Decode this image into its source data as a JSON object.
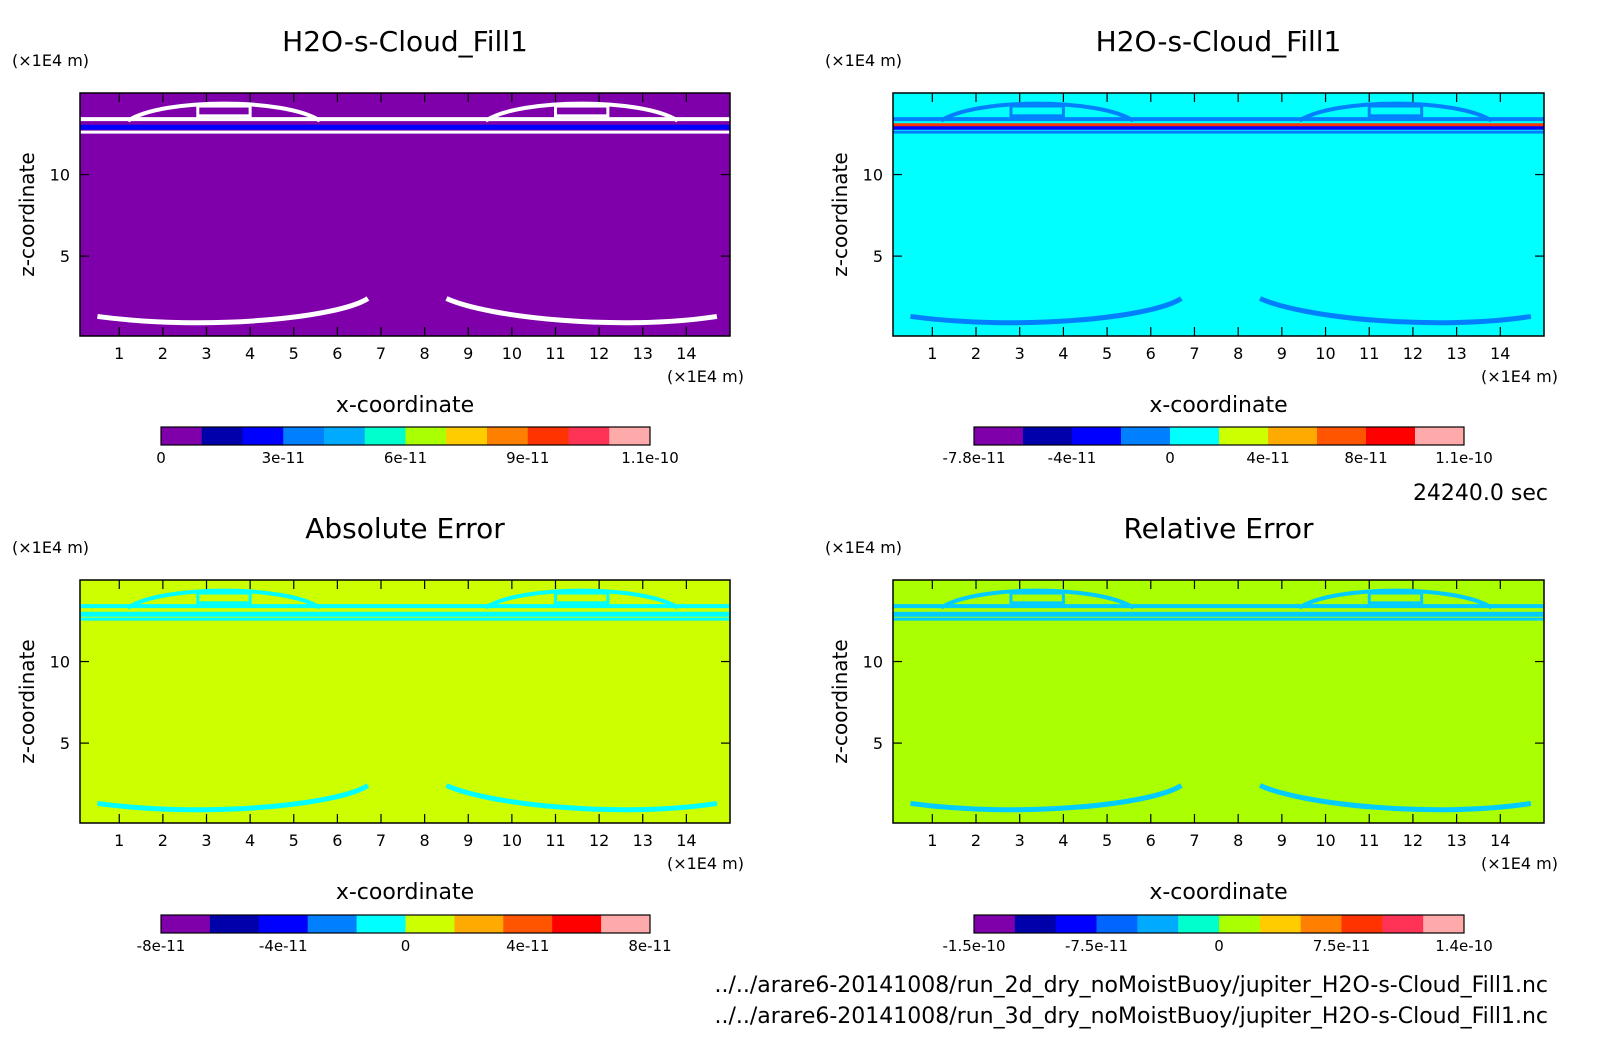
{
  "footer": {
    "time": "24240.0 sec",
    "paths": [
      "../../arare6-20141008/run_2d_dry_noMoistBuoy/jupiter_H2O-s-Cloud_Fill1.nc",
      "../../arare6-20141008/run_3d_dry_noMoistBuoy/jupiter_H2O-s-Cloud_Fill1.nc"
    ]
  },
  "chart_data": [
    {
      "type": "heatmap",
      "title": "H2O-s-Cloud_Fill1",
      "xlabel": "x-coordinate",
      "ylabel": "z-coordinate",
      "x_unit": "(x1E4 m)",
      "y_unit": "(x1E4 m)",
      "xlim": [
        0.1,
        15
      ],
      "ylim": [
        0.1,
        15
      ],
      "x_ticks": [
        "1",
        "2",
        "3",
        "4",
        "5",
        "6",
        "7",
        "8",
        "9",
        "10",
        "11",
        "12",
        "13",
        "14"
      ],
      "y_ticks": [
        "5",
        "10"
      ],
      "background_color": "#7f00aa",
      "contour_color": "#ffffff",
      "colorbar": {
        "colors": [
          "#7f00aa",
          "#0000aa",
          "#0000ff",
          "#0080ff",
          "#00aaff",
          "#00ffcc",
          "#aaff00",
          "#ffcc00",
          "#ff8000",
          "#ff3300",
          "#ff3355",
          "#ffaaaa"
        ],
        "labels": [
          "0",
          "3e-11",
          "6e-11",
          "9e-11",
          "1.1e-10"
        ]
      }
    },
    {
      "type": "heatmap",
      "title": "H2O-s-Cloud_Fill1",
      "xlabel": "x-coordinate",
      "ylabel": "z-coordinate",
      "x_unit": "(x1E4 m)",
      "y_unit": "(x1E4 m)",
      "xlim": [
        0.1,
        15
      ],
      "ylim": [
        0.1,
        15
      ],
      "x_ticks": [
        "1",
        "2",
        "3",
        "4",
        "5",
        "6",
        "7",
        "8",
        "9",
        "10",
        "11",
        "12",
        "13",
        "14"
      ],
      "y_ticks": [
        "5",
        "10"
      ],
      "background_color": "#00ffff",
      "contour_color": "#0080ff",
      "colorbar": {
        "colors": [
          "#7f00aa",
          "#0000aa",
          "#0000ff",
          "#0080ff",
          "#00ffff",
          "#ccff00",
          "#ffaa00",
          "#ff5500",
          "#ff0000",
          "#ffaaaa"
        ],
        "labels": [
          "-7.8e-11",
          "-4e-11",
          "0",
          "4e-11",
          "8e-11",
          "1.1e-10"
        ]
      }
    },
    {
      "type": "heatmap",
      "title": "Absolute Error",
      "xlabel": "x-coordinate",
      "ylabel": "z-coordinate",
      "x_unit": "(x1E4 m)",
      "y_unit": "(x1E4 m)",
      "xlim": [
        0.1,
        15
      ],
      "ylim": [
        0.1,
        15
      ],
      "x_ticks": [
        "1",
        "2",
        "3",
        "4",
        "5",
        "6",
        "7",
        "8",
        "9",
        "10",
        "11",
        "12",
        "13",
        "14"
      ],
      "y_ticks": [
        "5",
        "10"
      ],
      "background_color": "#ccff00",
      "contour_color": "#00ffff",
      "colorbar": {
        "colors": [
          "#7f00aa",
          "#0000aa",
          "#0000ff",
          "#0080ff",
          "#00ffff",
          "#ccff00",
          "#ffaa00",
          "#ff5500",
          "#ff0000",
          "#ffaaaa"
        ],
        "labels": [
          "-8e-11",
          "-4e-11",
          "0",
          "4e-11",
          "8e-11"
        ]
      }
    },
    {
      "type": "heatmap",
      "title": "Relative Error",
      "xlabel": "x-coordinate",
      "ylabel": "z-coordinate",
      "x_unit": "(x1E4 m)",
      "y_unit": "(x1E4 m)",
      "xlim": [
        0.1,
        15
      ],
      "ylim": [
        0.1,
        15
      ],
      "x_ticks": [
        "1",
        "2",
        "3",
        "4",
        "5",
        "6",
        "7",
        "8",
        "9",
        "10",
        "11",
        "12",
        "13",
        "14"
      ],
      "y_ticks": [
        "5",
        "10"
      ],
      "background_color": "#aaff00",
      "contour_color": "#00ccff",
      "colorbar": {
        "colors": [
          "#7f00aa",
          "#0000aa",
          "#0000ff",
          "#0066ff",
          "#00aaff",
          "#00ffcc",
          "#aaff00",
          "#ffcc00",
          "#ff8000",
          "#ff3300",
          "#ff3355",
          "#ffaaaa"
        ],
        "labels": [
          "-1.5e-10",
          "-7.5e-11",
          "0",
          "7.5e-11",
          "1.4e-10"
        ]
      }
    }
  ]
}
